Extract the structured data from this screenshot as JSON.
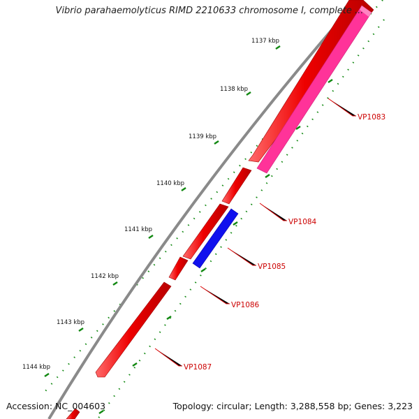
{
  "title": "Vibrio parahaemolyticus RIMD 2210633 chromosome I, complete ...",
  "footer": {
    "accession": "Accession: NC_004603",
    "summary": "Topology: circular; Length: 3,288,558 bp; Genes: 3,223"
  },
  "colors": {
    "backbone": "#888888",
    "forward_gene": "#ee0000",
    "reverse_gene": "#ff3399",
    "highlight_gene": "#1010ee",
    "ticks": "#118811",
    "gene_label": "#cc0000",
    "leader": "#dd0000"
  },
  "scale": {
    "unit": "kbp",
    "labels": [
      "1137 kbp",
      "1138 kbp",
      "1139 kbp",
      "1140 kbp",
      "1141 kbp",
      "1142 kbp",
      "1143 kbp",
      "1144 kbp"
    ]
  },
  "genes": [
    {
      "name": "VP1083",
      "strand": "reverse",
      "color": "pink"
    },
    {
      "name": "VP1084",
      "strand": "forward",
      "color": "red"
    },
    {
      "name": "VP1085",
      "strand": "reverse",
      "color": "blue"
    },
    {
      "name": "VP1086",
      "strand": "forward",
      "color": "red"
    },
    {
      "name": "VP1087",
      "strand": "forward",
      "color": "red"
    }
  ]
}
